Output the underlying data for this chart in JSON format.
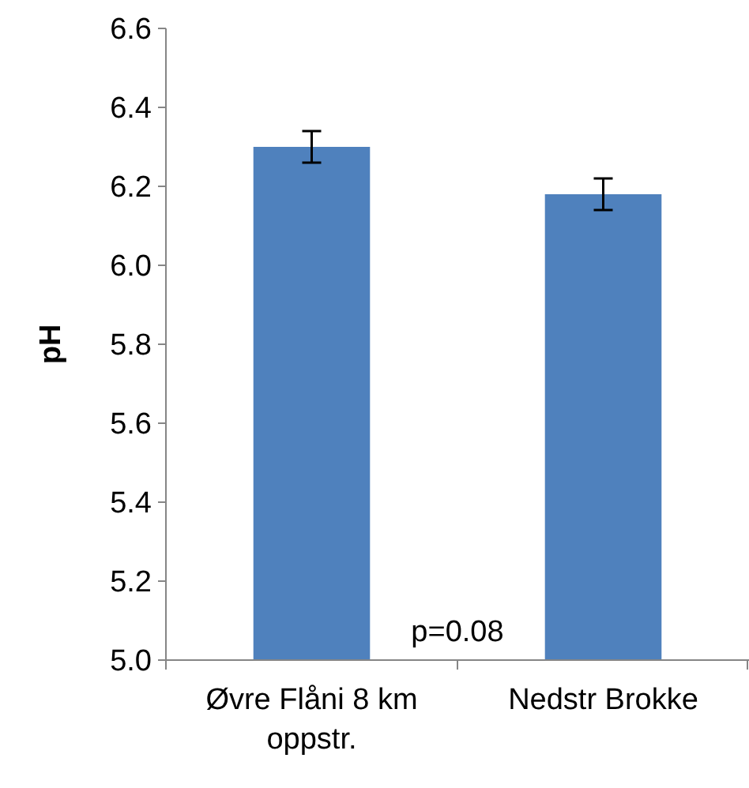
{
  "chart_data": {
    "type": "bar",
    "ylabel": "pH",
    "categories": [
      "Øvre Flåni 8 km oppstr.",
      "Nedstr Brokke"
    ],
    "values": [
      6.3,
      6.18
    ],
    "errors": [
      0.04,
      0.04
    ],
    "color": "#4f81bd",
    "ylim": [
      5.0,
      6.6
    ],
    "yticks": [
      {
        "value": 5.0,
        "label": "5.0"
      },
      {
        "value": 5.2,
        "label": "5.2"
      },
      {
        "value": 5.4,
        "label": "5.4"
      },
      {
        "value": 5.6,
        "label": "5.6"
      },
      {
        "value": 5.8,
        "label": "5.8"
      },
      {
        "value": 6.0,
        "label": "6.0"
      },
      {
        "value": 6.2,
        "label": "6.2"
      },
      {
        "value": 6.4,
        "label": "6.4"
      },
      {
        "value": 6.6,
        "label": "6.6"
      }
    ],
    "grid": false,
    "annotations": [
      "p=0.08"
    ]
  }
}
